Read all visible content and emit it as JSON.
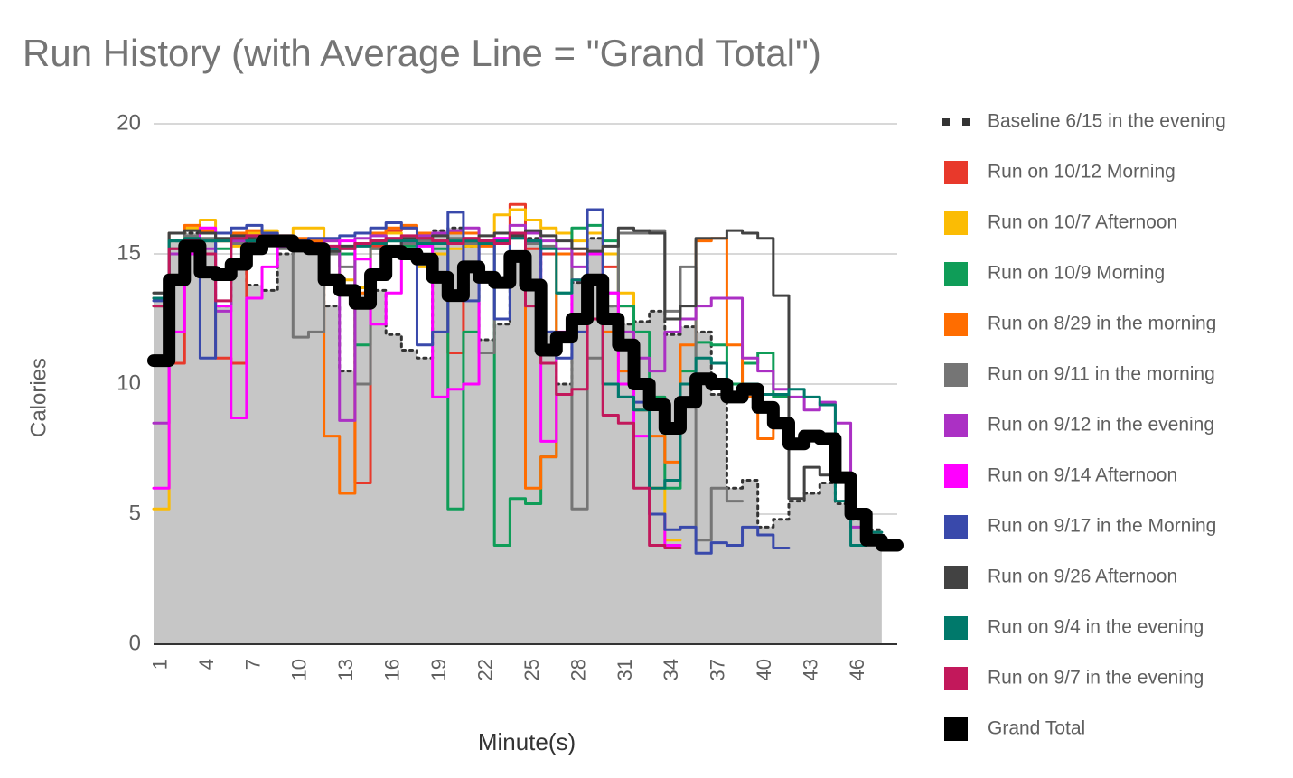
{
  "chart_data": {
    "type": "stepline",
    "title": "Run History (with Average Line = \"Grand Total\")",
    "x_label": "Minute(s)",
    "y_label": "Calories",
    "categories": [
      "1",
      null,
      null,
      "4",
      null,
      null,
      "7",
      null,
      null,
      "10",
      null,
      null,
      "13",
      null,
      null,
      "16",
      null,
      null,
      "19",
      null,
      null,
      "22",
      null,
      null,
      "25",
      null,
      null,
      "28",
      null,
      null,
      "31",
      null,
      null,
      "34",
      null,
      null,
      "37",
      null,
      null,
      "40",
      null,
      null,
      "43",
      null,
      null,
      "46",
      null,
      null
    ],
    "ylim": [
      0,
      20
    ],
    "yticks": [
      0,
      5,
      10,
      15,
      20
    ],
    "grid": true,
    "legend_position": "right",
    "series": [
      {
        "name": "Baseline 6/15 in the evening",
        "color": "#333333",
        "fill": "#c6c6c6",
        "line_style": "dotted",
        "values": [
          13.3,
          15.5,
          15.8,
          15.5,
          13,
          14.5,
          13.8,
          13.6,
          15,
          15.3,
          15.2,
          13,
          10.5,
          13.5,
          13.6,
          11.9,
          11.3,
          11,
          15.9,
          16,
          15.3,
          11.7,
          12.3,
          14.9,
          15.6,
          12,
          10,
          13.9,
          15.6,
          13,
          12.3,
          12.4,
          12.8,
          11.9,
          12.2,
          12,
          9.6,
          6,
          6.3,
          4.5,
          4.8,
          5.5,
          5.8,
          6.2,
          5.4,
          4.8,
          4.4,
          null
        ]
      },
      {
        "name": "Run on 10/12 Morning",
        "color": "#e8392b",
        "values": [
          13,
          10.8,
          15.5,
          15.8,
          11,
          10.8,
          15.5,
          15.7,
          15.6,
          15.5,
          15.3,
          15.2,
          15,
          6.2,
          15.3,
          15.9,
          16,
          15.8,
          15.5,
          11.2,
          15.6,
          15.5,
          15.8,
          16.9,
          15.2,
          15,
          15,
          15,
          15,
          14.5,
          13,
          null,
          null,
          null,
          null,
          null,
          null,
          null,
          null,
          null,
          null,
          null,
          null,
          null,
          null,
          null,
          null,
          null
        ]
      },
      {
        "name": "Run on 10/7 Afternoon",
        "color": "#fbbc04",
        "values": [
          5.2,
          15.2,
          16,
          16.3,
          15.5,
          15.3,
          15.8,
          15.9,
          15.7,
          16,
          16,
          15.5,
          14,
          13.7,
          15.5,
          15.8,
          15.5,
          14.5,
          15,
          15.2,
          15.3,
          15.5,
          16.5,
          16.7,
          16.3,
          16,
          15.8,
          15.5,
          15.8,
          15,
          13.5,
          10,
          6,
          4,
          null,
          null,
          null,
          null,
          null,
          null,
          null,
          null,
          null,
          null,
          null,
          null,
          null,
          null
        ]
      },
      {
        "name": "Run on 10/9 Morning",
        "color": "#0f9d58",
        "values": [
          13,
          15.5,
          15.6,
          15.5,
          15.2,
          15.5,
          15.6,
          15.5,
          15.5,
          15.4,
          15.2,
          15,
          15,
          11.5,
          15.2,
          15.5,
          15.3,
          15.5,
          15.2,
          5.2,
          12,
          15.5,
          3.8,
          5.6,
          5.4,
          7.2,
          13.5,
          16,
          16.1,
          15.5,
          13,
          12,
          9.5,
          6,
          10.5,
          11.6,
          11.5,
          10,
          10.8,
          11.2,
          9.5,
          null,
          null,
          null,
          null,
          null,
          null,
          null
        ]
      },
      {
        "name": "Run on 8/29 in the morning",
        "color": "#ff6d00",
        "values": [
          13.3,
          15.8,
          16.1,
          15.9,
          15.5,
          15.8,
          15.9,
          15.8,
          15.7,
          15.6,
          15.5,
          8,
          5.8,
          13.5,
          15.8,
          16,
          16.1,
          15.8,
          15.5,
          15.8,
          15.8,
          15.3,
          15.5,
          15.7,
          6,
          7.2,
          15,
          15.2,
          15,
          12,
          10.5,
          9,
          8,
          7,
          11.5,
          15.5,
          15.6,
          11.5,
          9.5,
          7.9,
          8.5,
          null,
          null,
          null,
          null,
          null,
          null,
          null
        ]
      },
      {
        "name": "Run on 9/11 in the morning",
        "color": "#757575",
        "values": [
          13.5,
          15.8,
          15.7,
          15.6,
          15.5,
          15.4,
          15.6,
          15.5,
          15.2,
          11.8,
          12,
          15,
          14.5,
          10,
          15.2,
          15.5,
          15.4,
          15.5,
          15.5,
          15.6,
          15.4,
          11.2,
          15.5,
          15.6,
          15.4,
          15.3,
          15.2,
          5.2,
          11,
          13,
          15.8,
          15.8,
          15.9,
          12.8,
          14.5,
          4,
          6,
          5.5,
          null,
          null,
          null,
          null,
          null,
          null,
          null,
          null,
          null,
          null
        ]
      },
      {
        "name": "Run on 9/12 in the evening",
        "color": "#ab30c4",
        "values": [
          8.5,
          15,
          15.3,
          15.2,
          12.8,
          15.5,
          15.7,
          15.5,
          15.3,
          15.2,
          15.4,
          15.5,
          8.6,
          15.6,
          15.7,
          15.6,
          15.5,
          15.7,
          15.8,
          15.9,
          16,
          15.5,
          15.6,
          16.1,
          15.8,
          15.5,
          15.2,
          14.5,
          14,
          13.5,
          12,
          11,
          10.5,
          12,
          12.5,
          13,
          13.3,
          13.3,
          11,
          10.5,
          9.8,
          9.5,
          9,
          9.3,
          8.5,
          4.5,
          4,
          null
        ]
      },
      {
        "name": "Run on 9/14 Afternoon",
        "color": "#ff00ff",
        "values": [
          6,
          12,
          15,
          16,
          13,
          8.7,
          13.3,
          14.5,
          15.5,
          15.2,
          15.3,
          15.2,
          15.5,
          14.8,
          12.3,
          13.5,
          15.5,
          15.3,
          9.5,
          9.8,
          10,
          15.5,
          15.6,
          15.7,
          15.5,
          7.8,
          12,
          14,
          15,
          13.5,
          10,
          8,
          5,
          3.8,
          null,
          null,
          null,
          null,
          null,
          null,
          null,
          null,
          null,
          null,
          null,
          null,
          null,
          null
        ]
      },
      {
        "name": "Run on 9/17 in the Morning",
        "color": "#3949ab",
        "values": [
          13.2,
          15.2,
          15.5,
          11,
          15.8,
          16,
          16.1,
          15.8,
          15.7,
          15.5,
          15.6,
          15.6,
          15.7,
          15.8,
          16,
          16.2,
          16,
          11.5,
          12,
          16.6,
          13.2,
          15.5,
          12.5,
          15.8,
          15.5,
          12,
          11,
          12,
          16.7,
          10,
          9.5,
          9.3,
          5,
          4.4,
          4.5,
          3.5,
          3.9,
          3.8,
          4.5,
          4.2,
          3.7,
          null,
          null,
          null,
          null,
          null,
          null,
          null
        ]
      },
      {
        "name": "Run on 9/26 Afternoon",
        "color": "#424242",
        "values": [
          13.5,
          15.8,
          15.9,
          15.8,
          15.6,
          15.7,
          15.6,
          15.4,
          15.5,
          15.4,
          15.3,
          15.1,
          15.3,
          15.4,
          15.5,
          15.3,
          15.6,
          15.6,
          15.7,
          15.4,
          15.5,
          15.7,
          15.8,
          15.7,
          15.9,
          15.7,
          15.5,
          15.2,
          15.1,
          15.3,
          16,
          15.9,
          15.8,
          12.5,
          13,
          15.6,
          15.6,
          15.9,
          15.8,
          15.6,
          13.4,
          5.6,
          6.8,
          6.5,
          null,
          null,
          null,
          null
        ]
      },
      {
        "name": "Run on 9/4 in the evening",
        "color": "#00796b",
        "values": [
          13.3,
          15.5,
          15.6,
          15.5,
          15.5,
          15.6,
          15.5,
          15.4,
          15.4,
          15.3,
          15.3,
          15.2,
          15.2,
          15.3,
          15.4,
          15.5,
          15.5,
          15.4,
          15.4,
          15.5,
          15.5,
          15.4,
          15.5,
          15.6,
          15.5,
          15.2,
          13.5,
          14,
          14,
          10,
          9.5,
          9,
          6,
          6.3,
          10,
          11,
          10.8,
          9.5,
          10,
          9.6,
          9.6,
          9.8,
          9.5,
          9.2,
          5.5,
          3.8,
          4.3,
          null
        ]
      },
      {
        "name": "Run on 9/7 in the evening",
        "color": "#c2185b",
        "values": [
          13,
          15.2,
          15.5,
          15,
          13.2,
          15.6,
          15.7,
          15.5,
          15.4,
          15.3,
          15.4,
          15.3,
          15.2,
          15.4,
          15.5,
          15.6,
          15.7,
          15.6,
          15.5,
          15.4,
          15.6,
          15.5,
          15.4,
          15.8,
          13,
          10.8,
          9.6,
          9.8,
          12.5,
          8.8,
          8.5,
          6,
          3.8,
          3.7,
          null,
          null,
          null,
          null,
          null,
          null,
          null,
          null,
          null,
          null,
          null,
          null,
          null,
          null
        ]
      },
      {
        "name": "Grand Total",
        "color": "#000000",
        "line_width": 14,
        "values": [
          10.9,
          14,
          15.3,
          14.3,
          14.2,
          14.6,
          15.2,
          15.5,
          15.5,
          15.3,
          15.2,
          14,
          13.6,
          13.1,
          14.2,
          15.1,
          15,
          14.8,
          14.1,
          13.4,
          14.5,
          14.1,
          13.9,
          14.9,
          13.8,
          11.3,
          11.8,
          12.5,
          14,
          12.5,
          11.5,
          10,
          9.2,
          8.3,
          9.3,
          10.2,
          10,
          9.5,
          9.8,
          9.1,
          8.5,
          7.7,
          8,
          7.9,
          6.4,
          5,
          4,
          3.8
        ]
      }
    ]
  }
}
